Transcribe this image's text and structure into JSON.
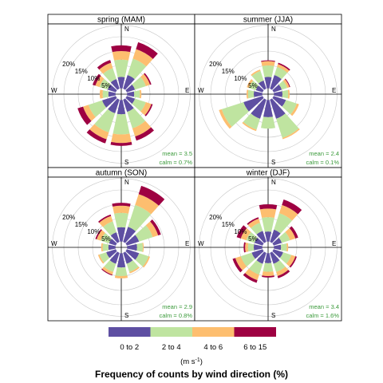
{
  "chart_data": {
    "type": "windrose",
    "title": "Frequency of counts by wind direction (%)",
    "directions_deg": [
      0,
      30,
      60,
      90,
      120,
      150,
      180,
      210,
      240,
      270,
      300,
      330
    ],
    "direction_labels": [
      "N",
      "E",
      "S",
      "W"
    ],
    "ring_labels": [
      "5%",
      "10%",
      "15%",
      "20%"
    ],
    "ring_values": [
      5,
      10,
      15,
      20
    ],
    "bins": [
      {
        "label": "0 to 2",
        "color": "#5e4fa2"
      },
      {
        "label": "2 to 4",
        "color": "#bfe4a0"
      },
      {
        "label": "4 to 6",
        "color": "#fdbe6f"
      },
      {
        "label": "6 to 15",
        "color": "#9e0142"
      }
    ],
    "unit_label": "(m s",
    "unit_exponent": "-1",
    "unit_close": ")",
    "panels": [
      {
        "title": "spring (MAM)",
        "mean": "mean = 3.5",
        "calm": "calm = 0.7%",
        "rose": [
          [
            4,
            6,
            3,
            2
          ],
          [
            5,
            6,
            3.5,
            2.5
          ],
          [
            3,
            4,
            1.5,
            0.5
          ],
          [
            2.5,
            2,
            0.5,
            0
          ],
          [
            3,
            4,
            2,
            0.5
          ],
          [
            4.5,
            6,
            3,
            1.5
          ],
          [
            5,
            7,
            3,
            1
          ],
          [
            5,
            7,
            2.5,
            1.5
          ],
          [
            5,
            5,
            2,
            2
          ],
          [
            2.5,
            2,
            1,
            0
          ],
          [
            3,
            3,
            1.5,
            1
          ],
          [
            3.5,
            4,
            2,
            1
          ]
        ]
      },
      {
        "title": "summer (JJA)",
        "mean": "mean = 2.4",
        "calm": "calm = 0.1%",
        "rose": [
          [
            4,
            4,
            1.5,
            0.3
          ],
          [
            5,
            3,
            1,
            0.5
          ],
          [
            3,
            2,
            0.8,
            0.3
          ],
          [
            3,
            2,
            0.5,
            0
          ],
          [
            4.5,
            4,
            0.8,
            0
          ],
          [
            7,
            7,
            0.5,
            0
          ],
          [
            6,
            4,
            0,
            0
          ],
          [
            7,
            4,
            0.5,
            0
          ],
          [
            7,
            8,
            1,
            0
          ],
          [
            3,
            2,
            0.5,
            0
          ],
          [
            2.5,
            2.5,
            0.8,
            0
          ],
          [
            3,
            3.5,
            0.5,
            0
          ]
        ]
      },
      {
        "title": "autumn (SON)",
        "mean": "mean = 2.9",
        "calm": "calm = 0.8%",
        "rose": [
          [
            5,
            5,
            2.5,
            1
          ],
          [
            5.5,
            8,
            4,
            3
          ],
          [
            4.5,
            5,
            2,
            1
          ],
          [
            3.5,
            2,
            0.3,
            0
          ],
          [
            4.5,
            3.5,
            0.5,
            0
          ],
          [
            4,
            3,
            0.5,
            0
          ],
          [
            5,
            3,
            0.8,
            0
          ],
          [
            4,
            3,
            1,
            0.3
          ],
          [
            3.5,
            2.5,
            0.5,
            0
          ],
          [
            2.5,
            2,
            0.5,
            0
          ],
          [
            2.5,
            3,
            1.5,
            0.5
          ],
          [
            3.5,
            4,
            2,
            0.5
          ]
        ]
      },
      {
        "title": "winter (DJF)",
        "mean": "mean = 3.4",
        "calm": "calm = 1.6%",
        "rose": [
          [
            3.5,
            5,
            3,
            1.5
          ],
          [
            4.5,
            6,
            3,
            2
          ],
          [
            3,
            3,
            2,
            1
          ],
          [
            2.5,
            2,
            0.5,
            0
          ],
          [
            3.5,
            3,
            1.5,
            0.5
          ],
          [
            4,
            3,
            1.5,
            0.8
          ],
          [
            3.5,
            3,
            1.5,
            0.5
          ],
          [
            4,
            4,
            2,
            1
          ],
          [
            4,
            4,
            2,
            1
          ],
          [
            3,
            2,
            1,
            0.5
          ],
          [
            3,
            3,
            2,
            1.5
          ],
          [
            4,
            3,
            1.5,
            0.5
          ]
        ]
      }
    ]
  }
}
